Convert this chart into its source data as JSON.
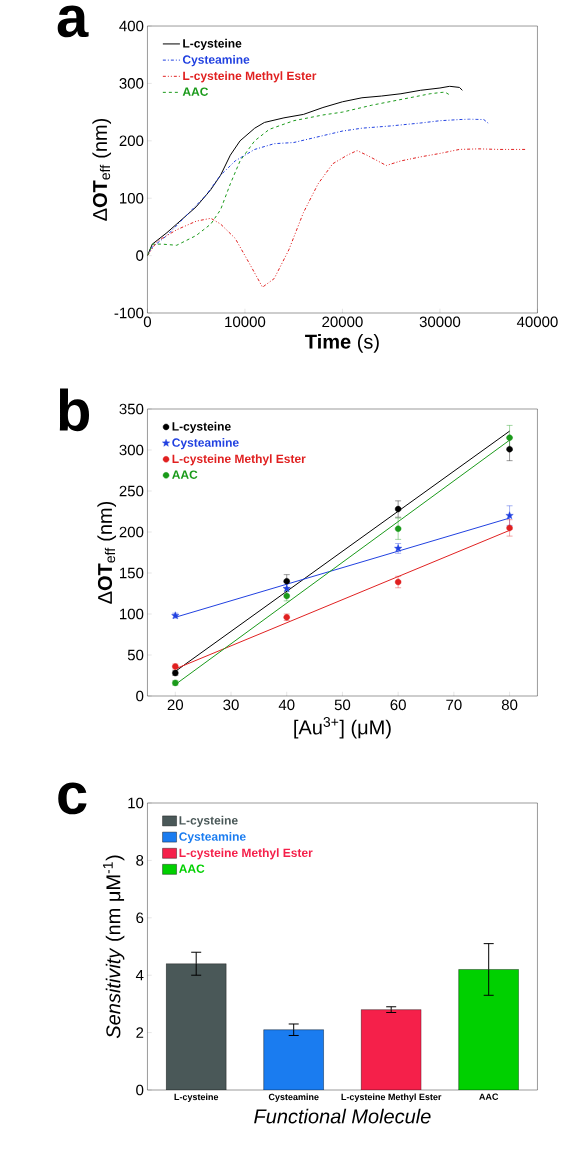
{
  "chart_data": [
    {
      "type": "line",
      "title": "a",
      "xlabel": "**Time** (s)",
      "ylabel": "Δ**OT**$_{eff}$ (nm)",
      "xlim": [
        0,
        40000
      ],
      "ylim": [
        -100,
        400
      ],
      "xticks": [
        0,
        10000,
        20000,
        30000,
        40000
      ],
      "yticks": [
        -100,
        0,
        100,
        200,
        300,
        400
      ],
      "legend": "top left",
      "series": [
        {
          "name": "L-cysteine",
          "color": "#000000",
          "line_style": "solid",
          "x": [
            0,
            500,
            2000,
            3000,
            5000,
            6500,
            7500,
            8500,
            9500,
            11000,
            12000,
            14000,
            16000,
            18000,
            20000,
            22000,
            24000,
            26000,
            28000,
            30000,
            31000,
            32000,
            32300
          ],
          "values": [
            0,
            20,
            40,
            55,
            85,
            115,
            140,
            175,
            200,
            222,
            232,
            240,
            246,
            258,
            268,
            275,
            278,
            282,
            288,
            292,
            295,
            293,
            288
          ]
        },
        {
          "name": "Cysteamine",
          "color": "#2040e0",
          "line_style": "dashdot",
          "x": [
            0,
            500,
            2000,
            4000,
            6000,
            7500,
            9000,
            11000,
            13000,
            15000,
            17000,
            20000,
            22000,
            25000,
            28000,
            30000,
            33000,
            34500,
            35000
          ],
          "values": [
            0,
            15,
            35,
            70,
            105,
            140,
            165,
            185,
            195,
            197,
            205,
            217,
            222,
            226,
            231,
            235,
            238,
            237,
            230
          ]
        },
        {
          "name": "L-cysteine Methyl Ester",
          "color": "#e02020",
          "line_style": "dashdotdot",
          "x": [
            0,
            1000,
            3000,
            5000,
            6500,
            7500,
            9000,
            10500,
            11800,
            13000,
            14500,
            16000,
            17500,
            19000,
            20500,
            21500,
            22500,
            24500,
            26000,
            28000,
            30000,
            32000,
            34000,
            36000,
            38800
          ],
          "values": [
            0,
            25,
            45,
            60,
            65,
            55,
            30,
            -15,
            -55,
            -40,
            10,
            75,
            125,
            160,
            175,
            183,
            175,
            157,
            165,
            172,
            178,
            185,
            186,
            185,
            185
          ]
        },
        {
          "name": "AAC",
          "color": "#1a9a1a",
          "line_style": "dashed",
          "x": [
            0,
            500,
            1500,
            3000,
            5000,
            6500,
            7500,
            8500,
            9500,
            11000,
            12500,
            15000,
            18000,
            20000,
            23000,
            26000,
            29000,
            30500,
            31000
          ],
          "values": [
            0,
            20,
            20,
            18,
            35,
            55,
            80,
            125,
            165,
            200,
            220,
            235,
            245,
            250,
            262,
            272,
            282,
            285,
            280
          ]
        }
      ]
    },
    {
      "type": "scatter",
      "title": "b",
      "xlabel": "[Au$^{3+}$] (μM)",
      "ylabel": "Δ**OT**$_{eff}$ (nm)",
      "x": [
        20,
        40,
        60,
        80
      ],
      "xlim": [
        15,
        85
      ],
      "ylim": [
        0,
        350
      ],
      "xticks": [
        20,
        30,
        40,
        50,
        60,
        70,
        80
      ],
      "yticks": [
        0,
        50,
        100,
        150,
        200,
        250,
        300,
        350
      ],
      "legend": "top left",
      "series": [
        {
          "name": "L-cysteine",
          "color": "#000000",
          "marker": "circle",
          "values": [
            28,
            140,
            228,
            301
          ],
          "errors": [
            3,
            8,
            10,
            14
          ]
        },
        {
          "name": "Cysteamine",
          "color": "#2040e0",
          "marker": "star",
          "values": [
            98,
            131,
            180,
            220
          ],
          "errors": [
            3,
            8,
            6,
            12
          ]
        },
        {
          "name": "L-cysteine Methyl Ester",
          "color": "#e02020",
          "marker": "circle",
          "values": [
            36,
            96,
            139,
            205
          ],
          "errors": [
            3,
            4,
            7,
            10
          ]
        },
        {
          "name": "AAC",
          "color": "#1a9a1a",
          "marker": "circle",
          "values": [
            16,
            122,
            204,
            315
          ],
          "errors": [
            3,
            6,
            13,
            15
          ]
        },
        {
          "type": "line",
          "color": "#000000",
          "x": [
            20,
            80
          ],
          "values": [
            30,
            323
          ]
        },
        {
          "type": "line",
          "color": "#2040e0",
          "x": [
            20,
            80
          ],
          "values": [
            96,
            217
          ]
        },
        {
          "type": "line",
          "color": "#e02020",
          "x": [
            20,
            80
          ],
          "values": [
            33,
            202
          ]
        },
        {
          "type": "line",
          "color": "#1a9a1a",
          "x": [
            20,
            80
          ],
          "values": [
            14,
            312
          ]
        }
      ]
    },
    {
      "type": "bar",
      "title": "c",
      "xlabel": "*Functional Molecule*",
      "ylabel": "*Sensitivity* (nm μM$^{-1}$)",
      "categories": [
        "L-cysteine",
        "Cysteamine",
        "L-cysteine Methyl Ester",
        "AAC"
      ],
      "series": [
        {
          "name": "L-cysteine",
          "color": "#4a5858",
          "values": [
            4.4,
            null,
            null,
            null
          ],
          "errors": [
            0.4,
            null,
            null,
            null
          ]
        },
        {
          "name": "Cysteamine",
          "color": "#1a7cf0",
          "values": [
            null,
            2.1,
            null,
            null
          ],
          "errors": [
            null,
            0.2,
            null,
            null
          ]
        },
        {
          "name": "L-cysteine Methyl Ester",
          "color": "#f5204a",
          "values": [
            null,
            null,
            2.8,
            null
          ],
          "errors": [
            null,
            null,
            0.1,
            null
          ]
        },
        {
          "name": "AAC",
          "color": "#00d000",
          "values": [
            null,
            null,
            null,
            4.2
          ],
          "errors": [
            null,
            null,
            null,
            0.9
          ]
        }
      ],
      "ylim": [
        0,
        10
      ],
      "yticks": [
        0,
        2,
        4,
        6,
        8,
        10
      ],
      "legend": "top left"
    }
  ]
}
